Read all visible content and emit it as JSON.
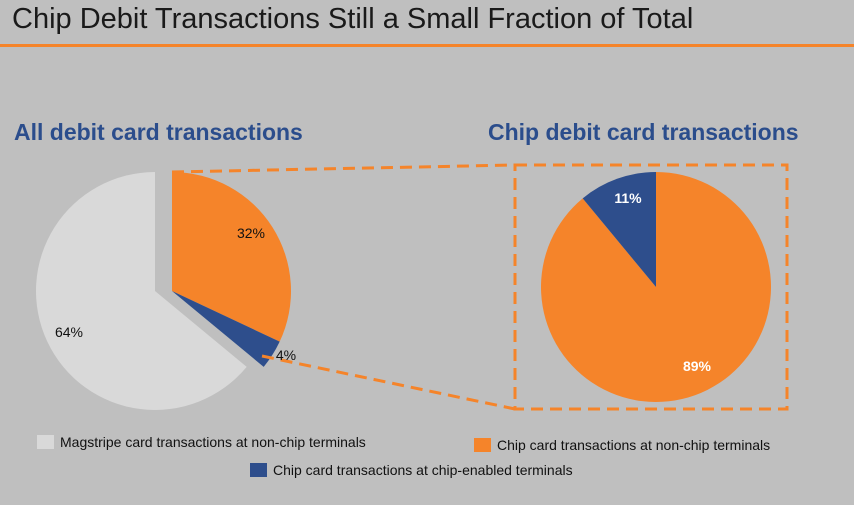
{
  "title": "Chip Debit Transactions Still a Small Fraction of Total",
  "colors": {
    "magstripe": "#d9d9d9",
    "chip_nonchip": "#f5842a",
    "chip_enabled": "#2e4e8c",
    "accent": "#f5842a",
    "subtitle": "#2b4d8c",
    "background": "#bfbfbf"
  },
  "chart_data": [
    {
      "type": "pie",
      "title": "All debit card transactions",
      "slices": [
        {
          "label": "Magstripe card transactions at non-chip terminals",
          "value": 64,
          "display": "64%",
          "color": "#d9d9d9"
        },
        {
          "label": "Chip card transactions at non-chip terminals",
          "value": 32,
          "display": "32%",
          "color": "#f5842a"
        },
        {
          "label": "Chip card transactions at chip-enabled terminals",
          "value": 4,
          "display": "4%",
          "color": "#2e4e8c"
        }
      ]
    },
    {
      "type": "pie",
      "title": "Chip debit card transactions",
      "slices": [
        {
          "label": "Chip card transactions at chip-enabled terminals",
          "value": 11,
          "display": "11%",
          "color": "#2e4e8c"
        },
        {
          "label": "Chip card transactions at non-chip terminals",
          "value": 89,
          "display": "89%",
          "color": "#f5842a"
        }
      ]
    }
  ],
  "legend": [
    {
      "label": "Magstripe card transactions at non-chip terminals",
      "color": "#d9d9d9"
    },
    {
      "label": "Chip card transactions at non-chip terminals",
      "color": "#f5842a"
    },
    {
      "label": "Chip card transactions at chip-enabled terminals",
      "color": "#2e4e8c"
    }
  ]
}
